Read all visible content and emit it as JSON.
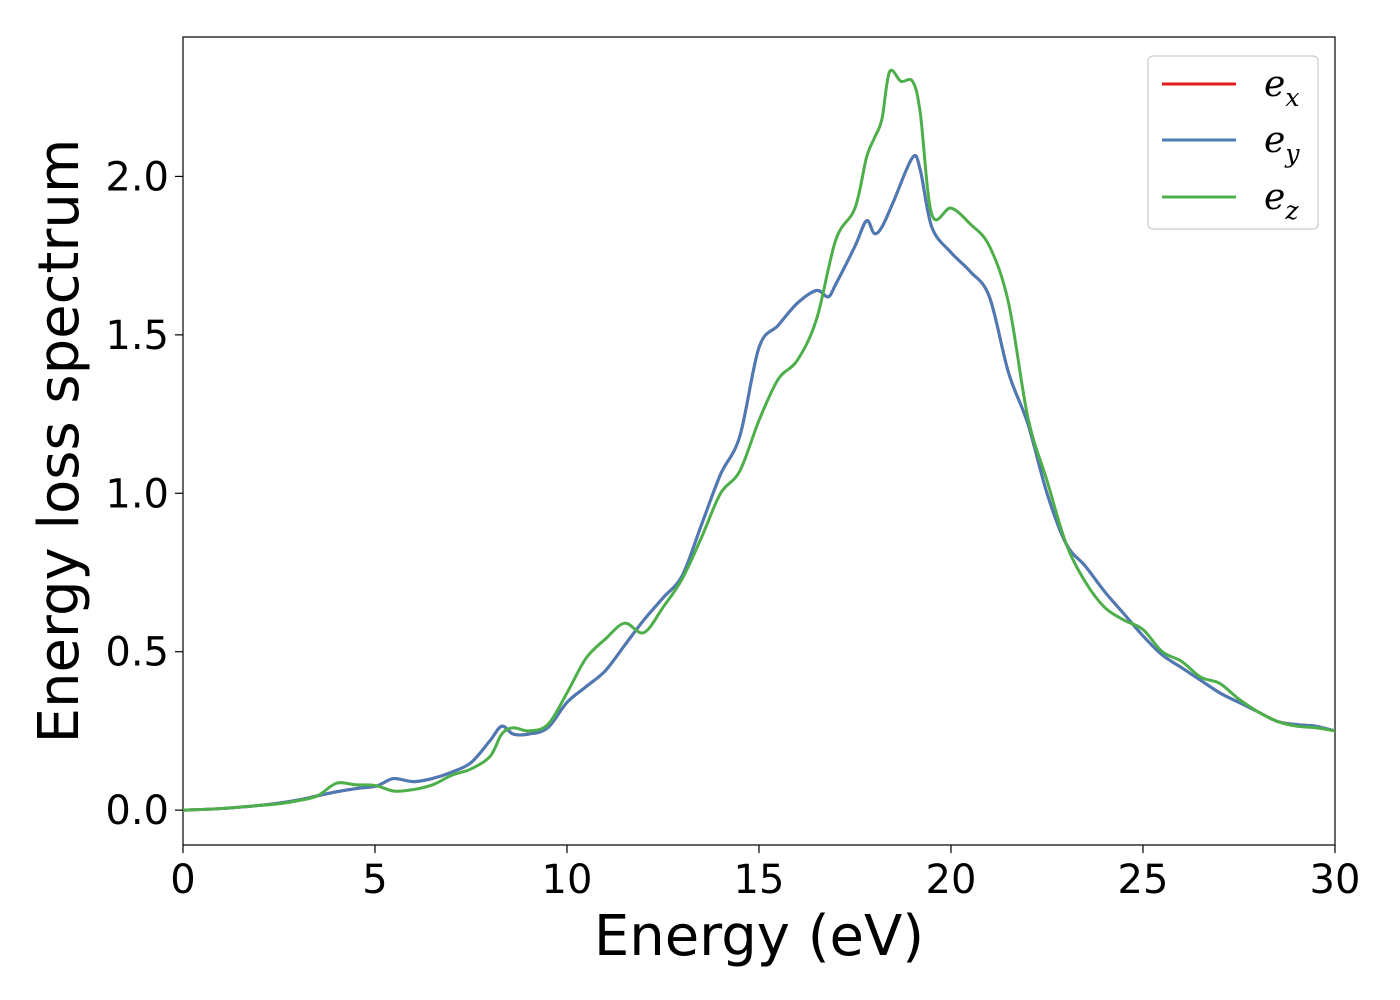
{
  "chart_data": {
    "type": "line",
    "xlabel": "Energy (eV)",
    "ylabel": "Energy loss spectrum",
    "xlim": [
      0,
      30
    ],
    "ylim": [
      -0.11,
      2.44
    ],
    "xticks": [
      0,
      5,
      10,
      15,
      20,
      25,
      30
    ],
    "xtick_labels": [
      "0",
      "5",
      "10",
      "15",
      "20",
      "25",
      "30"
    ],
    "yticks": [
      0.0,
      0.5,
      1.0,
      1.5,
      2.0
    ],
    "ytick_labels": [
      "0.0",
      "0.5",
      "1.0",
      "1.5",
      "2.0"
    ],
    "grid": false,
    "legend_position": "top-right",
    "series": [
      {
        "name": "e",
        "subscript": "x",
        "color": "#e41a1c",
        "x": [
          0,
          1,
          2,
          2.5,
          3,
          3.5,
          4,
          4.5,
          5,
          5.2,
          5.5,
          6,
          6.5,
          7,
          7.5,
          8,
          8.3,
          8.6,
          9,
          9.5,
          10,
          10.5,
          11,
          11.5,
          12,
          12.5,
          13,
          13.5,
          14,
          14.5,
          15,
          15.5,
          16,
          16.5,
          16.8,
          17,
          17.5,
          17.8,
          18,
          18.2,
          18.5,
          19,
          19.2,
          19.5,
          20,
          20.5,
          21,
          21.5,
          22,
          22.5,
          23,
          23.5,
          24,
          24.5,
          25,
          25.5,
          26,
          26.5,
          27,
          27.5,
          28,
          28.5,
          29,
          29.5,
          30
        ],
        "y": [
          0,
          0.005,
          0.015,
          0.022,
          0.032,
          0.045,
          0.058,
          0.068,
          0.075,
          0.085,
          0.1,
          0.09,
          0.1,
          0.12,
          0.15,
          0.22,
          0.265,
          0.24,
          0.24,
          0.26,
          0.34,
          0.39,
          0.44,
          0.52,
          0.6,
          0.67,
          0.74,
          0.9,
          1.06,
          1.18,
          1.46,
          1.53,
          1.6,
          1.64,
          1.62,
          1.66,
          1.78,
          1.86,
          1.82,
          1.84,
          1.92,
          2.06,
          2.02,
          1.84,
          1.76,
          1.7,
          1.62,
          1.38,
          1.22,
          1.0,
          0.84,
          0.77,
          0.69,
          0.62,
          0.55,
          0.49,
          0.45,
          0.41,
          0.37,
          0.34,
          0.31,
          0.28,
          0.27,
          0.265,
          0.25
        ]
      },
      {
        "name": "e",
        "subscript": "y",
        "color": "#4a7bb7",
        "x": [
          0,
          1,
          2,
          2.5,
          3,
          3.5,
          4,
          4.5,
          5,
          5.2,
          5.5,
          6,
          6.5,
          7,
          7.5,
          8,
          8.3,
          8.6,
          9,
          9.5,
          10,
          10.5,
          11,
          11.5,
          12,
          12.5,
          13,
          13.5,
          14,
          14.5,
          15,
          15.5,
          16,
          16.5,
          16.8,
          17,
          17.5,
          17.8,
          18,
          18.2,
          18.5,
          19,
          19.2,
          19.5,
          20,
          20.5,
          21,
          21.5,
          22,
          22.5,
          23,
          23.5,
          24,
          24.5,
          25,
          25.5,
          26,
          26.5,
          27,
          27.5,
          28,
          28.5,
          29,
          29.5,
          30
        ],
        "y": [
          0,
          0.005,
          0.015,
          0.022,
          0.032,
          0.045,
          0.058,
          0.068,
          0.075,
          0.085,
          0.1,
          0.09,
          0.1,
          0.12,
          0.15,
          0.22,
          0.265,
          0.24,
          0.24,
          0.26,
          0.34,
          0.39,
          0.44,
          0.52,
          0.6,
          0.67,
          0.74,
          0.9,
          1.06,
          1.18,
          1.46,
          1.53,
          1.6,
          1.64,
          1.62,
          1.66,
          1.78,
          1.86,
          1.82,
          1.84,
          1.92,
          2.06,
          2.02,
          1.84,
          1.76,
          1.7,
          1.62,
          1.38,
          1.22,
          1.0,
          0.84,
          0.77,
          0.69,
          0.62,
          0.55,
          0.49,
          0.45,
          0.41,
          0.37,
          0.34,
          0.31,
          0.28,
          0.27,
          0.265,
          0.25
        ]
      },
      {
        "name": "e",
        "subscript": "z",
        "color": "#4daf4a",
        "x": [
          0,
          1,
          2,
          2.5,
          3,
          3.5,
          4,
          4.5,
          5,
          5.5,
          6,
          6.5,
          7,
          7.5,
          8,
          8.3,
          8.6,
          9,
          9.5,
          10,
          10.5,
          11,
          11.5,
          12,
          12.5,
          13,
          13.5,
          14,
          14.5,
          15,
          15.5,
          16,
          16.5,
          17,
          17.5,
          17.8,
          18,
          18.2,
          18.4,
          18.7,
          19,
          19.2,
          19.5,
          20,
          20.5,
          21,
          21.5,
          22,
          22.5,
          23,
          23.5,
          24,
          24.5,
          25,
          25.5,
          26,
          26.5,
          27,
          27.5,
          28,
          28.5,
          29,
          29.5,
          30
        ],
        "y": [
          0,
          0.005,
          0.015,
          0.02,
          0.03,
          0.045,
          0.085,
          0.08,
          0.078,
          0.06,
          0.065,
          0.08,
          0.11,
          0.13,
          0.17,
          0.24,
          0.26,
          0.25,
          0.27,
          0.37,
          0.48,
          0.54,
          0.59,
          0.56,
          0.64,
          0.73,
          0.86,
          1.0,
          1.07,
          1.23,
          1.36,
          1.42,
          1.55,
          1.8,
          1.9,
          2.06,
          2.12,
          2.18,
          2.33,
          2.3,
          2.3,
          2.2,
          1.88,
          1.9,
          1.85,
          1.78,
          1.6,
          1.24,
          1.04,
          0.84,
          0.72,
          0.64,
          0.6,
          0.57,
          0.5,
          0.47,
          0.42,
          0.4,
          0.35,
          0.31,
          0.28,
          0.265,
          0.26,
          0.25
        ]
      }
    ]
  }
}
